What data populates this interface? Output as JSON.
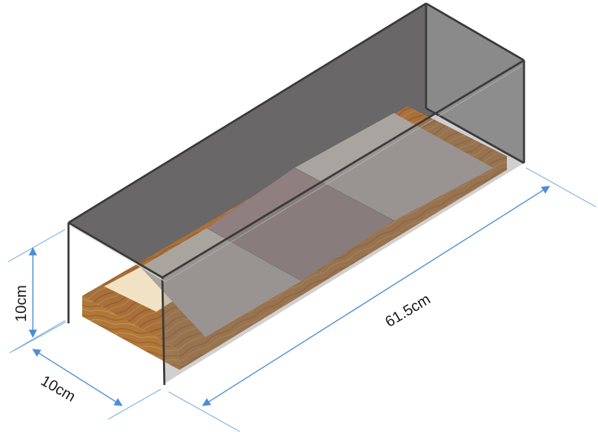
{
  "diagram": {
    "dimensions": {
      "height": "10cm",
      "width": "10cm",
      "length": "61.5cm"
    },
    "colors": {
      "dimension_line": "#7aaee0",
      "glass_fill": "#5c5a5a",
      "glass_edge": "#3a3a3a",
      "wood": "#a8703a",
      "wood_dark": "#8a5628",
      "tile_grey": "#a8a39d",
      "tile_pink": "#8e7e7e",
      "tile_cream": "#f1e2c4"
    }
  }
}
